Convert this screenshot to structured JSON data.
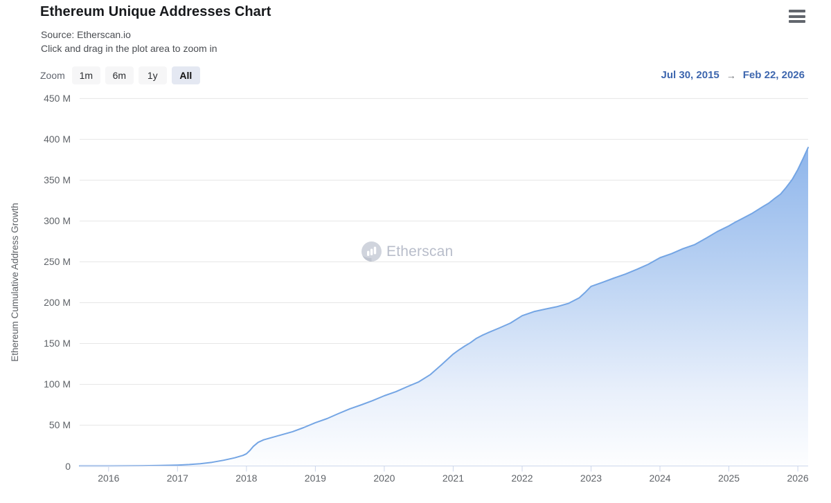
{
  "header": {
    "title": "Ethereum Unique Addresses Chart",
    "source_line": "Source: Etherscan.io",
    "hint_line": "Click and drag in the plot area to zoom in"
  },
  "toolbar": {
    "zoom_label": "Zoom",
    "buttons": [
      {
        "label": "1m",
        "active": false
      },
      {
        "label": "6m",
        "active": false
      },
      {
        "label": "1y",
        "active": false
      },
      {
        "label": "All",
        "active": true
      }
    ],
    "range_from": "Jul 30, 2015",
    "range_arrow": "→",
    "range_to": "Feb 22, 2026"
  },
  "watermark": {
    "text": "Etherscan",
    "logo": "etherscan-bar-chart-logo"
  },
  "colors": {
    "line": "#74a5e4",
    "fill_top": "#7daae8",
    "fill_mid": "#b7d0f2",
    "fill_low": "#e9f0fb",
    "fill_bottom": "#fdfeff",
    "grid": "#e6e6e6",
    "axis": "#ccd6eb",
    "active_button_bg": "#e4e8f2",
    "date_link": "#3d66ae"
  },
  "chart_data": {
    "type": "area",
    "title": "Ethereum Unique Addresses Chart",
    "xlabel": "",
    "ylabel": "Ethereum Cumulative Address Growth",
    "unit": "millions of addresses",
    "ylim": [
      0,
      450
    ],
    "x_range_years": [
      2015.58,
      2026.15
    ],
    "x_range_dates": [
      "Jul 30, 2015",
      "Feb 22, 2026"
    ],
    "grid": true,
    "legend": false,
    "yticks": [
      {
        "value": 0,
        "label": "0"
      },
      {
        "value": 50,
        "label": "50 M"
      },
      {
        "value": 100,
        "label": "100 M"
      },
      {
        "value": 150,
        "label": "150 M"
      },
      {
        "value": 200,
        "label": "200 M"
      },
      {
        "value": 250,
        "label": "250 M"
      },
      {
        "value": 300,
        "label": "300 M"
      },
      {
        "value": 350,
        "label": "350 M"
      },
      {
        "value": 400,
        "label": "400 M"
      },
      {
        "value": 450,
        "label": "450 M"
      }
    ],
    "xticks": [
      2016,
      2017,
      2018,
      2019,
      2020,
      2021,
      2022,
      2023,
      2024,
      2025,
      2026
    ],
    "series": [
      {
        "name": "Ethereum Cumulative Address Growth",
        "color": "#74a5e4",
        "points_format": "[decimal_year, millions]",
        "points": [
          [
            2015.58,
            0.05
          ],
          [
            2015.75,
            0.07
          ],
          [
            2016.0,
            0.1
          ],
          [
            2016.25,
            0.16
          ],
          [
            2016.5,
            0.3
          ],
          [
            2016.75,
            0.6
          ],
          [
            2017.0,
            1.1
          ],
          [
            2017.17,
            1.8
          ],
          [
            2017.33,
            2.8
          ],
          [
            2017.5,
            4.5
          ],
          [
            2017.67,
            7
          ],
          [
            2017.83,
            10
          ],
          [
            2017.95,
            13
          ],
          [
            2018.0,
            15
          ],
          [
            2018.05,
            19
          ],
          [
            2018.1,
            24
          ],
          [
            2018.17,
            29
          ],
          [
            2018.25,
            32
          ],
          [
            2018.33,
            34
          ],
          [
            2018.5,
            38
          ],
          [
            2018.67,
            42
          ],
          [
            2018.83,
            47
          ],
          [
            2019.0,
            53
          ],
          [
            2019.17,
            58
          ],
          [
            2019.33,
            64
          ],
          [
            2019.5,
            70
          ],
          [
            2019.67,
            75
          ],
          [
            2019.83,
            80
          ],
          [
            2020.0,
            86
          ],
          [
            2020.17,
            91
          ],
          [
            2020.33,
            97
          ],
          [
            2020.5,
            103
          ],
          [
            2020.67,
            112
          ],
          [
            2020.83,
            124
          ],
          [
            2021.0,
            137
          ],
          [
            2021.08,
            142
          ],
          [
            2021.17,
            147
          ],
          [
            2021.25,
            151
          ],
          [
            2021.33,
            156
          ],
          [
            2021.42,
            160
          ],
          [
            2021.5,
            163
          ],
          [
            2021.67,
            169
          ],
          [
            2021.83,
            175
          ],
          [
            2022.0,
            184
          ],
          [
            2022.17,
            189
          ],
          [
            2022.33,
            192
          ],
          [
            2022.5,
            195
          ],
          [
            2022.67,
            199
          ],
          [
            2022.83,
            206
          ],
          [
            2022.92,
            213
          ],
          [
            2023.0,
            220
          ],
          [
            2023.17,
            225
          ],
          [
            2023.33,
            230
          ],
          [
            2023.5,
            235
          ],
          [
            2023.67,
            241
          ],
          [
            2023.83,
            247
          ],
          [
            2024.0,
            255
          ],
          [
            2024.17,
            260
          ],
          [
            2024.33,
            266
          ],
          [
            2024.5,
            271
          ],
          [
            2024.67,
            279
          ],
          [
            2024.83,
            287
          ],
          [
            2025.0,
            294
          ],
          [
            2025.08,
            298
          ],
          [
            2025.17,
            302
          ],
          [
            2025.33,
            309
          ],
          [
            2025.5,
            318
          ],
          [
            2025.58,
            322
          ],
          [
            2025.67,
            328
          ],
          [
            2025.75,
            333
          ],
          [
            2025.83,
            341
          ],
          [
            2025.92,
            351
          ],
          [
            2026.0,
            363
          ],
          [
            2026.08,
            377
          ],
          [
            2026.15,
            390
          ]
        ]
      }
    ]
  }
}
